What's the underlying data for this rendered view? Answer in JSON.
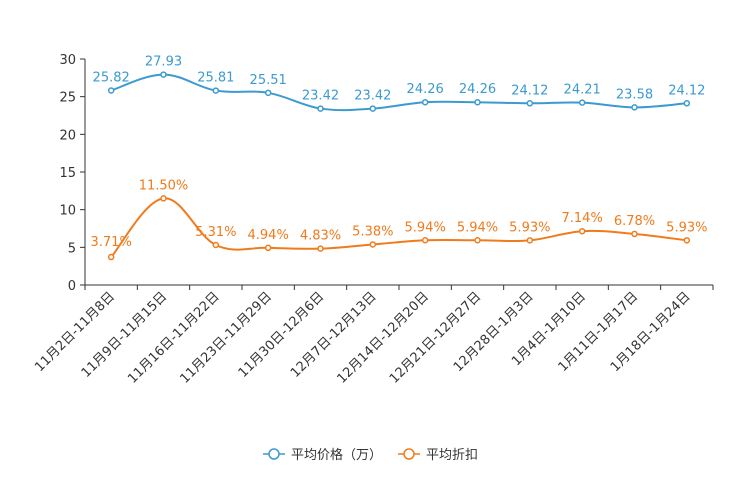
{
  "chart_data": {
    "type": "line",
    "categories": [
      "11月2日-11月8日",
      "11月9日-11月15日",
      "11月16日-11月22日",
      "11月23日-11月29日",
      "11月30日-12月6日",
      "12月7日-12月13日",
      "12月14日-12月20日",
      "12月21日-12月27日",
      "12月28日-1月3日",
      "1月4日-1月10日",
      "1月11日-1月17日",
      "1月18日-1月24日"
    ],
    "ylim": [
      0,
      30
    ],
    "yticks": [
      0,
      5,
      10,
      15,
      20,
      25,
      30
    ],
    "series": [
      {
        "name": "平均价格（万）",
        "color": "#3b9ad0",
        "values": [
          25.82,
          27.93,
          25.81,
          25.51,
          23.42,
          23.42,
          24.26,
          24.26,
          24.12,
          24.21,
          23.58,
          24.12
        ],
        "labels": [
          "25.82",
          "27.93",
          "25.81",
          "25.51",
          "23.42",
          "23.42",
          "24.26",
          "24.26",
          "24.12",
          "24.21",
          "23.58",
          "24.12"
        ]
      },
      {
        "name": "平均折扣",
        "color": "#f07b1c",
        "values": [
          3.71,
          11.5,
          5.31,
          4.94,
          4.83,
          5.38,
          5.94,
          5.94,
          5.93,
          7.14,
          6.78,
          5.93
        ],
        "labels": [
          "3.71%",
          "11.50%",
          "5.31%",
          "4.94%",
          "4.83%",
          "5.38%",
          "5.94%",
          "5.94%",
          "5.93%",
          "7.14%",
          "6.78%",
          "5.93%"
        ]
      }
    ],
    "legend_position": "bottom-center",
    "grid": false
  }
}
